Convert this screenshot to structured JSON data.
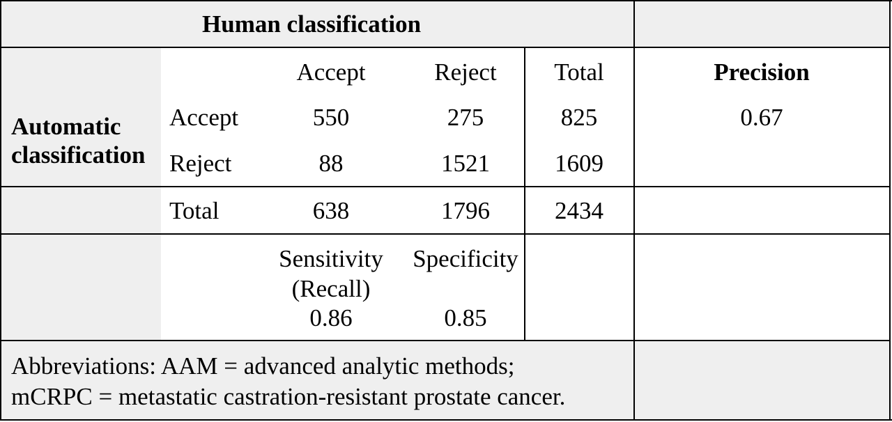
{
  "table": {
    "header_title": "Human classification",
    "row_group_label_line1": "Automatic",
    "row_group_label_line2": "classification",
    "col_headers": [
      "Accept",
      "Reject",
      "Total"
    ],
    "precision_header": "Precision",
    "rows": [
      {
        "label": "Accept",
        "values": [
          "550",
          "275",
          "825"
        ],
        "precision": "0.67"
      },
      {
        "label": "Reject",
        "values": [
          "88",
          "1521",
          "1609"
        ],
        "precision": ""
      }
    ],
    "total_row": {
      "label": "Total",
      "values": [
        "638",
        "1796",
        "2434"
      ]
    },
    "metrics": {
      "sensitivity_label_line1": "Sensitivity",
      "sensitivity_label_line2": "(Recall)",
      "sensitivity_value": "0.86",
      "specificity_label": "Specificity",
      "specificity_value": "0.85"
    },
    "footnote_line1": "Abbreviations: AAM = advanced analytic methods;",
    "footnote_line2": "mCRPC = metastatic castration-resistant prostate cancer."
  }
}
